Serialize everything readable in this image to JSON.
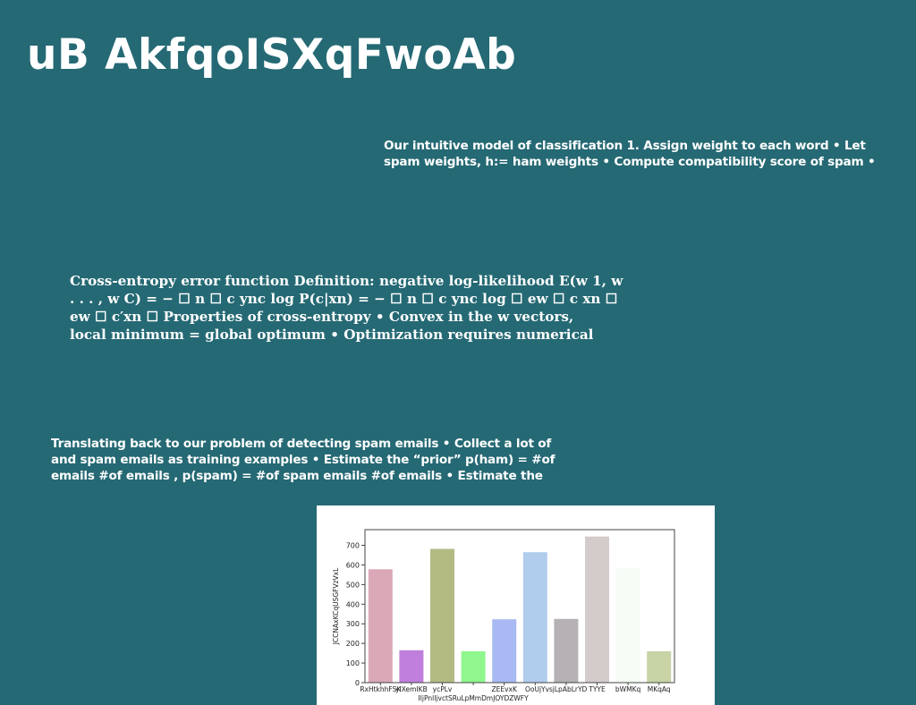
{
  "slide": {
    "title": "uB AkfqoISXqFwoAb",
    "block_1": {
      "lines": [
        "Our intuitive model of classification 1. Assign weight to each word • Let",
        "spam weights, h:= ham weights • Compute compatibility score of spam •"
      ]
    },
    "block_2": {
      "lines": [
        "Cross-entropy error function Definition: negative log-likelihood E(w 1, w",
        ". . . , w C) = − ☐ n ☐ c ync log P(c|xn) = − ☐ n ☐ c ync log ☐ ew ☐ c xn ☐",
        "ew ☐ c′xn ☐ Properties of cross-entropy • Convex in the w vectors,",
        "local minimum = global optimum • Optimization requires numerical"
      ]
    },
    "block_3": {
      "lines": [
        "Translating back to our problem of detecting spam emails • Collect a lot of",
        "and spam emails as training examples • Estimate the “prior” p(ham) = #of",
        "emails #of emails , p(spam) = #of spam emails #of emails • Estimate the"
      ]
    }
  },
  "chart_data": {
    "type": "bar",
    "ylabel": "JCCNAxKCqUSGFVzVxL",
    "ylim": [
      0,
      780
    ],
    "yticks": [
      0,
      100,
      200,
      300,
      400,
      500,
      600,
      700
    ],
    "categories": [
      {
        "label": "RxHtkhhFSK",
        "row": 0
      },
      {
        "label": "yIXemIKB",
        "row": 0
      },
      {
        "label": "ycPLv",
        "row": 0
      },
      {
        "label": "IIjPnlIjvctSRuLpMmDmJOYDZWFY",
        "row": 1
      },
      {
        "label": "ZEEvxK",
        "row": 0
      },
      {
        "label": "OoUjY",
        "row": 0
      },
      {
        "label": "vsjLpAbLrYD",
        "row": 0
      },
      {
        "label": "TYYE",
        "row": 0
      },
      {
        "label": "bWMKq",
        "row": 0
      },
      {
        "label": "MKqAq",
        "row": 0
      }
    ],
    "values": [
      578,
      165,
      682,
      160,
      323,
      665,
      325,
      745,
      585,
      160
    ],
    "colors": [
      "#dba8b8",
      "#c07fdc",
      "#b3bb83",
      "#8ff78d",
      "#a8b9f4",
      "#b0cded",
      "#b5b1b5",
      "#d4cbcb",
      "#f6fbf6",
      "#c8d3a6"
    ]
  }
}
